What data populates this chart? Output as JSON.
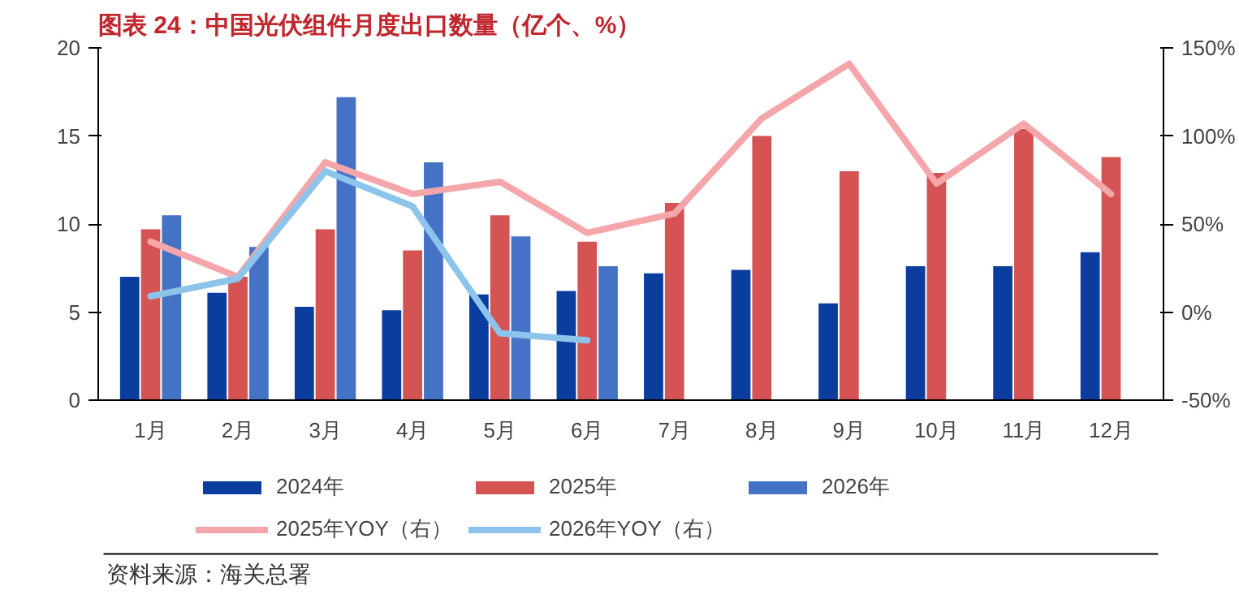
{
  "chart_data": {
    "type": "bar",
    "title": "图表 24：中国光伏组件月度出口数量（亿个、%）",
    "categories": [
      "1月",
      "2月",
      "3月",
      "4月",
      "5月",
      "6月",
      "7月",
      "8月",
      "9月",
      "10月",
      "11月",
      "12月"
    ],
    "series": [
      {
        "name": "2024年",
        "color": "#0a3d9e",
        "values": [
          7.0,
          6.1,
          5.3,
          5.1,
          6.0,
          6.2,
          7.2,
          7.4,
          5.5,
          7.6,
          7.6,
          8.4
        ]
      },
      {
        "name": "2025年",
        "color": "#d65353",
        "values": [
          9.7,
          7.0,
          9.7,
          8.5,
          10.5,
          9.0,
          11.2,
          15.0,
          13.0,
          12.9,
          15.4,
          13.8
        ]
      },
      {
        "name": "2026年",
        "color": "#4472c4",
        "values": [
          10.5,
          8.7,
          17.2,
          13.5,
          9.3,
          7.6,
          null,
          null,
          null,
          null,
          null,
          null
        ]
      },
      {
        "name": "2025年YOY（右）",
        "type": "line",
        "axis": "y2",
        "color": "#f4a6aa",
        "values": [
          40,
          20,
          85,
          67,
          74,
          45,
          56,
          110,
          141,
          73,
          107,
          67
        ]
      },
      {
        "name": "2026年YOY（右）",
        "type": "line",
        "axis": "y2",
        "color": "#8cc4ec",
        "values": [
          9,
          19,
          80,
          60,
          -12,
          -16,
          null,
          null,
          null,
          null,
          null,
          null
        ]
      }
    ],
    "ylim": [
      0,
      20
    ],
    "yticks": [
      0,
      5,
      10,
      15,
      20
    ],
    "y2lim": [
      -50,
      150
    ],
    "y2ticks": [
      {
        "value": -50,
        "label": "-50%"
      },
      {
        "value": 0,
        "label": "0%"
      },
      {
        "value": 50,
        "label": "50%"
      },
      {
        "value": 100,
        "label": "100%"
      },
      {
        "value": 150,
        "label": "150%"
      }
    ],
    "grid": false,
    "legend": "bottom",
    "line_style": "solid",
    "marker": "none",
    "annotations": [
      "资料来源：海关总署"
    ]
  }
}
